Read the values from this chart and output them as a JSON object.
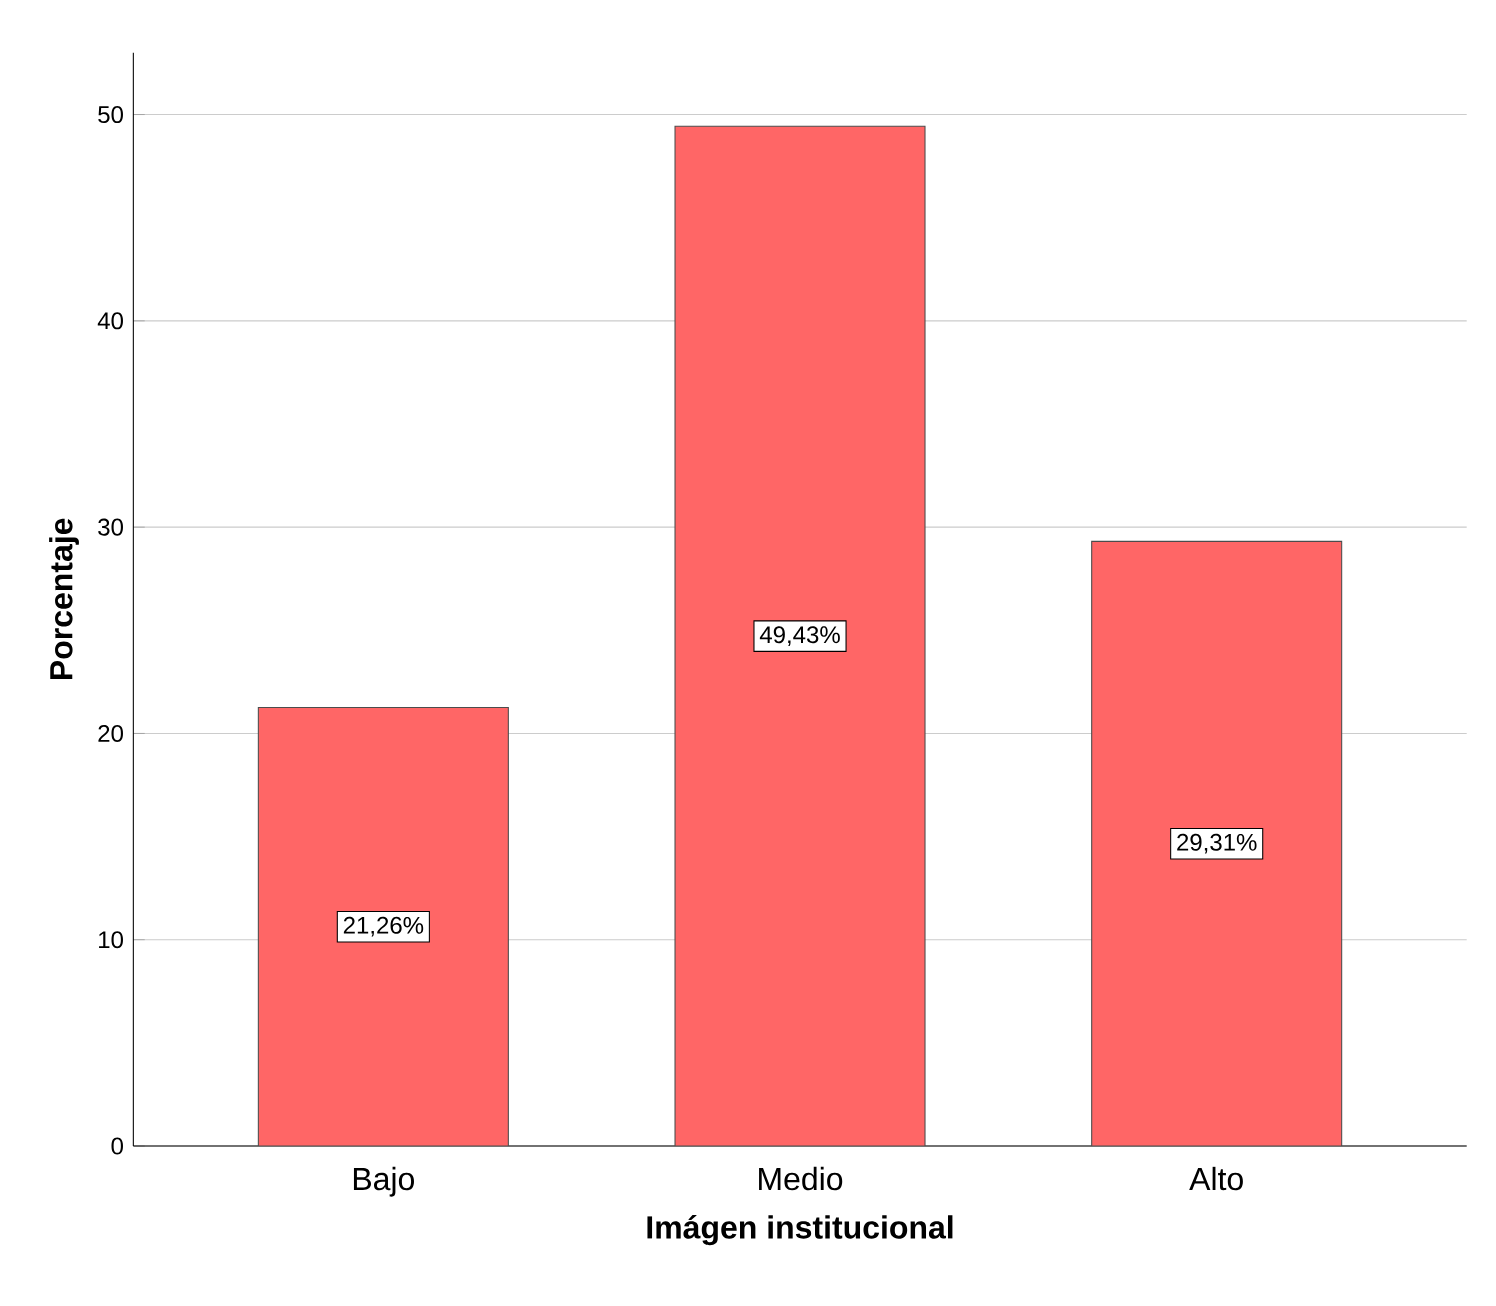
{
  "chart_data": {
    "type": "bar",
    "xlabel": "Imágen institucional",
    "ylabel": "Porcentaje",
    "categories": [
      "Bajo",
      "Medio",
      "Alto"
    ],
    "values": [
      21.26,
      49.43,
      29.31
    ],
    "value_labels": [
      "21,26%",
      "49,43%",
      "29,31%"
    ],
    "color": "#ff6666",
    "ylim": [
      0,
      53
    ],
    "yticks": [
      0,
      10,
      20,
      30,
      40,
      50
    ],
    "grid": "y"
  }
}
